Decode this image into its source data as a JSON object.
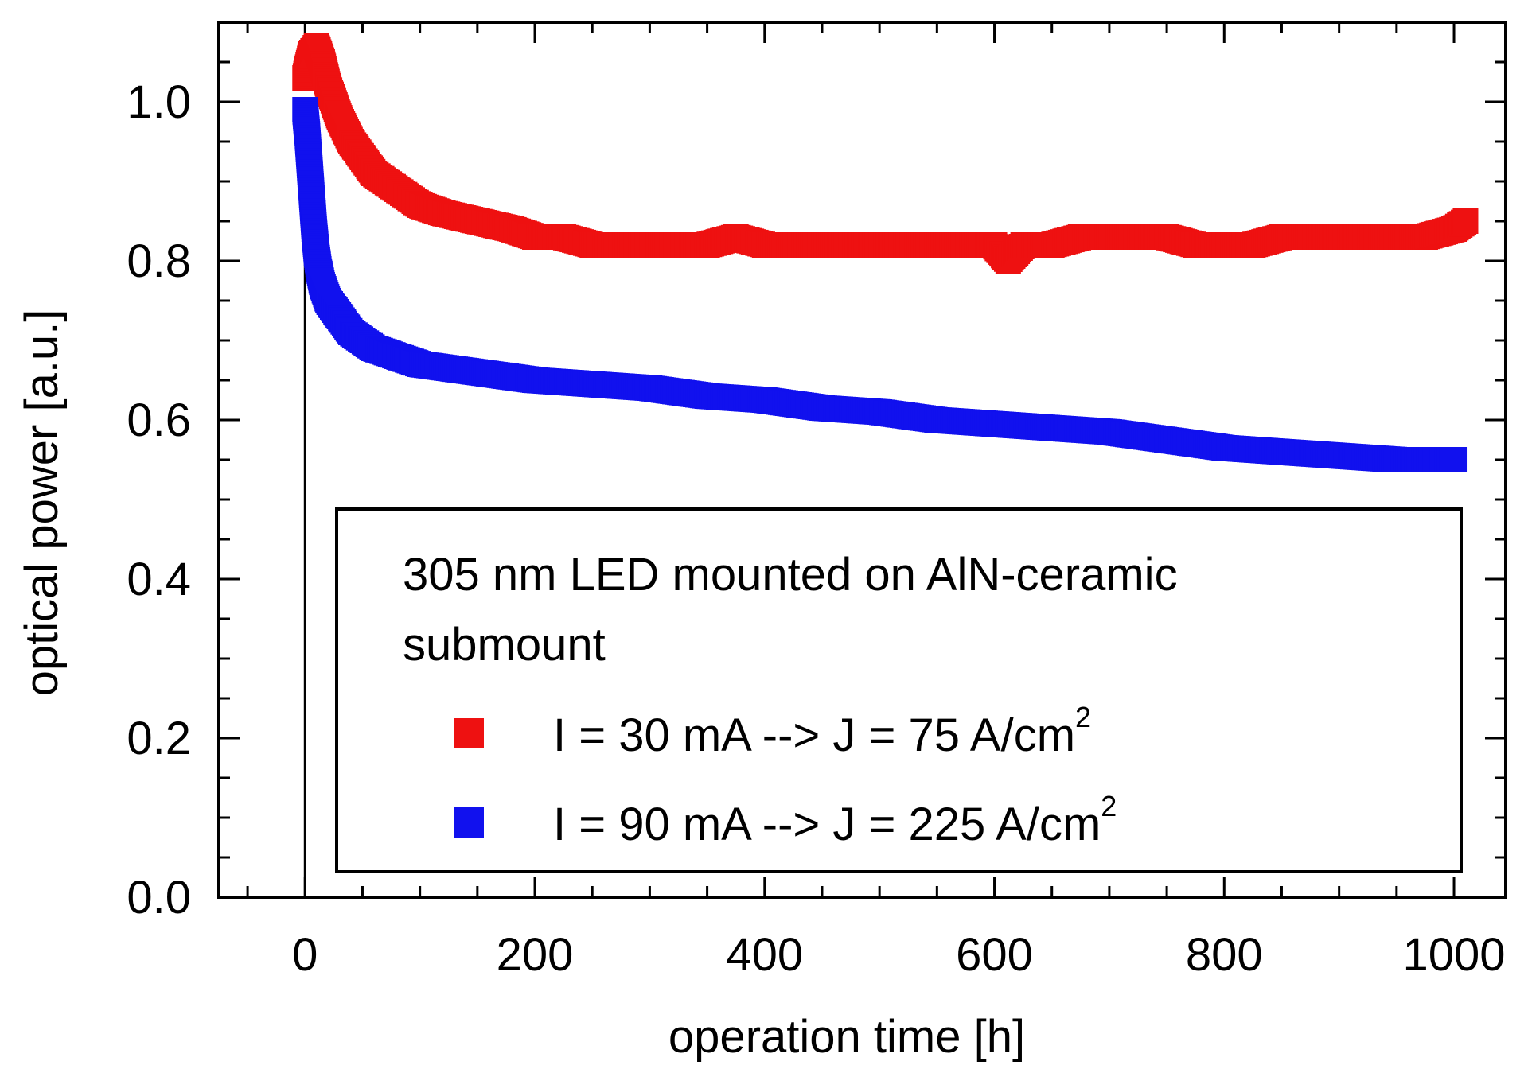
{
  "chart_data": {
    "type": "scatter",
    "xlabel": "operation time [h]",
    "ylabel": "optical power [a.u.]",
    "xlim": [
      -75,
      1045
    ],
    "ylim": [
      0.0,
      1.1
    ],
    "x_ticks": [
      0,
      200,
      400,
      600,
      800,
      1000
    ],
    "y_ticks": [
      0.0,
      0.2,
      0.4,
      0.6,
      0.8,
      1.0
    ],
    "x_tick_labels": [
      "0",
      "200",
      "400",
      "600",
      "800",
      "1000"
    ],
    "y_tick_labels": [
      "0.0",
      "0.2",
      "0.4",
      "0.6",
      "0.8",
      "1.0"
    ],
    "grid": false,
    "legend_position": "bottom-right",
    "legend_title": "305 nm LED mounted on AlN-ceramic submount",
    "legend_title_lines": [
      "305 nm LED mounted on AlN-ceramic",
      "submount"
    ],
    "series": [
      {
        "name": "I = 30 mA --> J = 75 A/cm",
        "name_superscript": "2",
        "color": "#ee1111",
        "x": [
          0,
          5,
          10,
          15,
          20,
          30,
          40,
          50,
          60,
          80,
          100,
          120,
          150,
          180,
          200,
          225,
          250,
          275,
          300,
          325,
          350,
          375,
          400,
          425,
          450,
          475,
          500,
          525,
          550,
          575,
          600,
          612,
          625,
          650,
          675,
          700,
          725,
          750,
          775,
          800,
          825,
          850,
          875,
          900,
          925,
          950,
          975,
          1000,
          1010
        ],
        "y": [
          1.03,
          1.06,
          1.07,
          1.05,
          1.02,
          0.98,
          0.95,
          0.93,
          0.91,
          0.89,
          0.87,
          0.86,
          0.85,
          0.84,
          0.83,
          0.83,
          0.82,
          0.82,
          0.82,
          0.82,
          0.82,
          0.83,
          0.82,
          0.82,
          0.82,
          0.82,
          0.82,
          0.82,
          0.82,
          0.82,
          0.82,
          0.8,
          0.82,
          0.82,
          0.83,
          0.83,
          0.83,
          0.83,
          0.82,
          0.82,
          0.82,
          0.83,
          0.83,
          0.83,
          0.83,
          0.83,
          0.83,
          0.84,
          0.85
        ]
      },
      {
        "name": "I = 90 mA --> J = 225 A/cm",
        "name_superscript": "2",
        "color": "#1111ee",
        "x": [
          0,
          2,
          4,
          6,
          8,
          10,
          12,
          15,
          20,
          25,
          30,
          40,
          50,
          60,
          80,
          100,
          125,
          150,
          175,
          200,
          250,
          300,
          350,
          400,
          450,
          500,
          550,
          600,
          650,
          700,
          750,
          800,
          850,
          900,
          950,
          1000
        ],
        "y": [
          0.99,
          0.96,
          0.92,
          0.88,
          0.84,
          0.81,
          0.79,
          0.77,
          0.75,
          0.74,
          0.73,
          0.71,
          0.7,
          0.69,
          0.68,
          0.67,
          0.665,
          0.66,
          0.655,
          0.65,
          0.645,
          0.64,
          0.63,
          0.625,
          0.615,
          0.61,
          0.6,
          0.595,
          0.59,
          0.585,
          0.575,
          0.565,
          0.56,
          0.555,
          0.55,
          0.55
        ]
      }
    ]
  }
}
